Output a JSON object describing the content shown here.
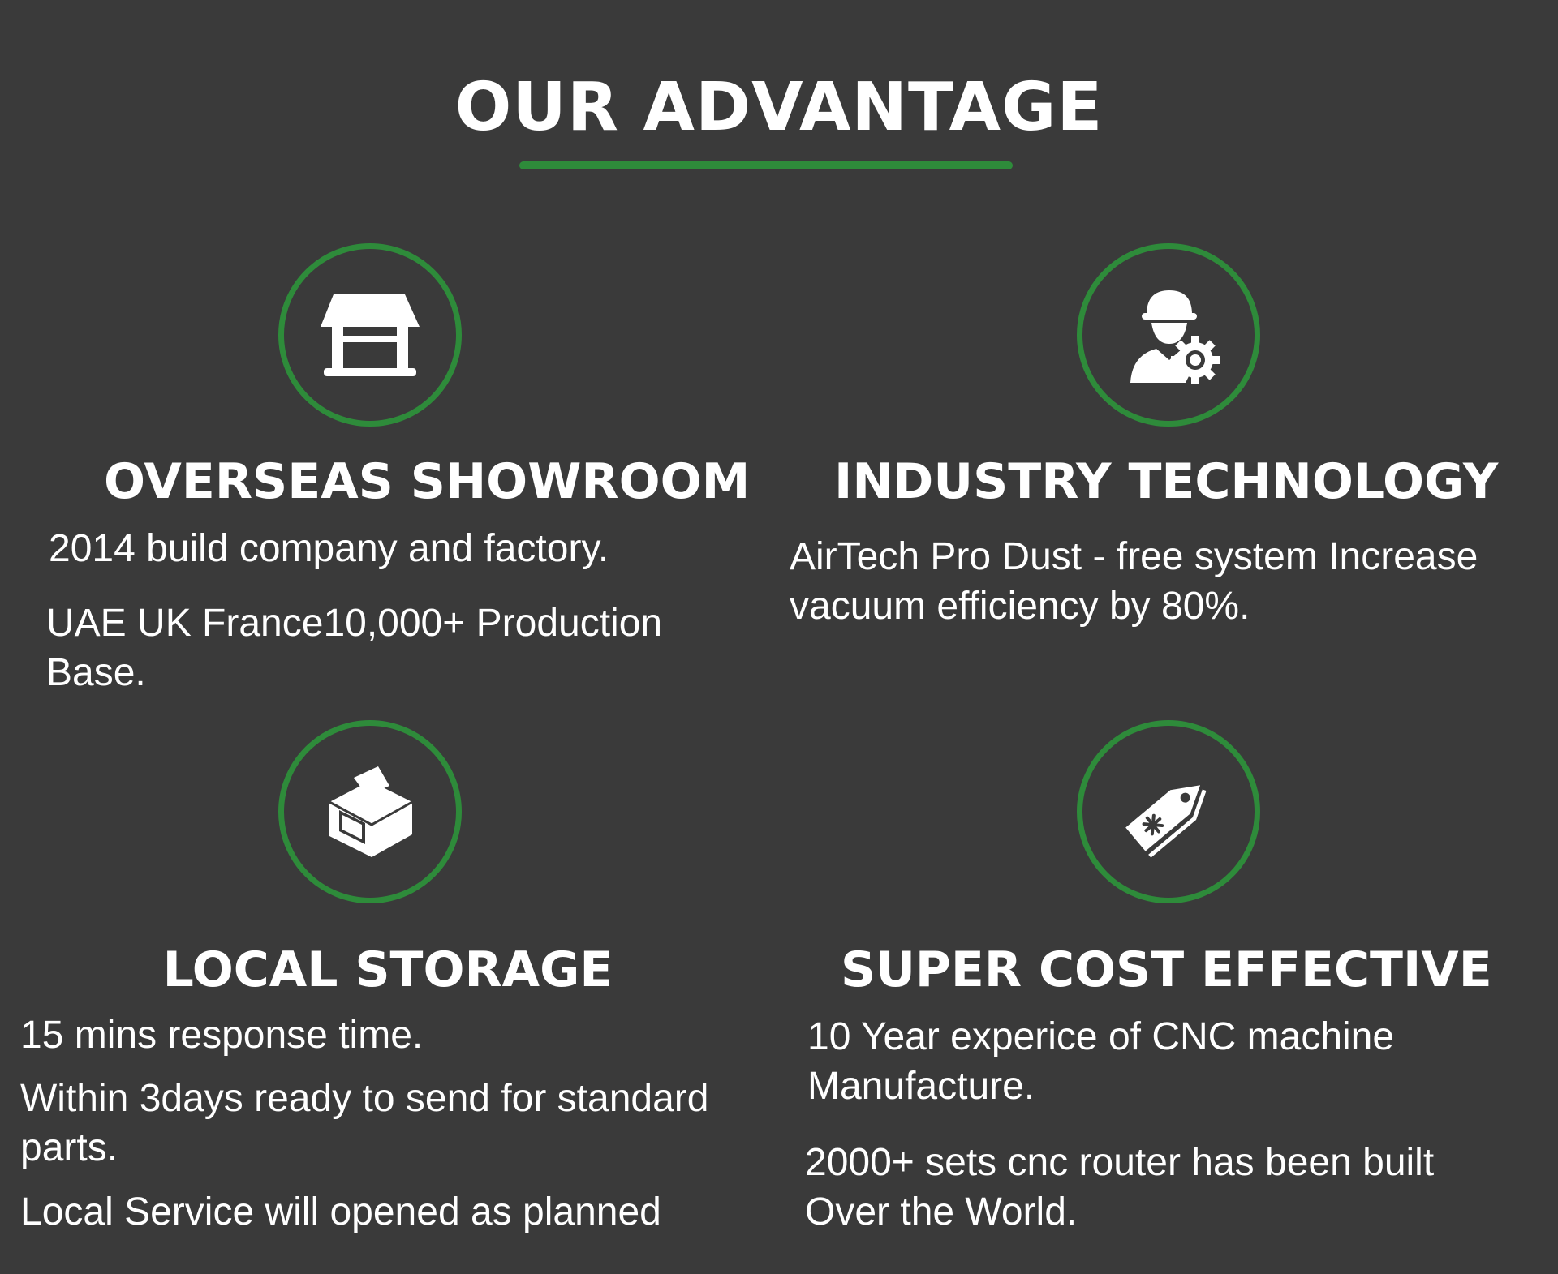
{
  "header": {
    "title": "OUR ADVANTAGE",
    "underline_color": "#2e8b3a"
  },
  "features": [
    {
      "icon": "storefront-icon",
      "title": "OVERSEAS SHOWROOM",
      "paragraphs": [
        "2014 build company and factory.",
        "UAE UK France10,000+ Production Base."
      ]
    },
    {
      "icon": "engineer-gear-icon",
      "title": "INDUSTRY TECHNOLOGY",
      "paragraphs": [
        "AirTech Pro Dust - free system Increase vacuum efficiency  by 80%."
      ]
    },
    {
      "icon": "box-icon",
      "title": "LOCAL STORAGE",
      "paragraphs": [
        "15 mins response time.",
        "Within 3days ready to send for standard parts.",
        "Local Service will opened as planned"
      ]
    },
    {
      "icon": "price-tag-icon",
      "title": "SUPER COST EFFECTIVE",
      "paragraphs": [
        "10 Year experice of CNC machine Manufacture.",
        "2000+ sets cnc router has been built Over the World."
      ]
    }
  ],
  "colors": {
    "background": "#3a3a3a",
    "accent": "#2e8b3a",
    "text": "#ffffff"
  }
}
